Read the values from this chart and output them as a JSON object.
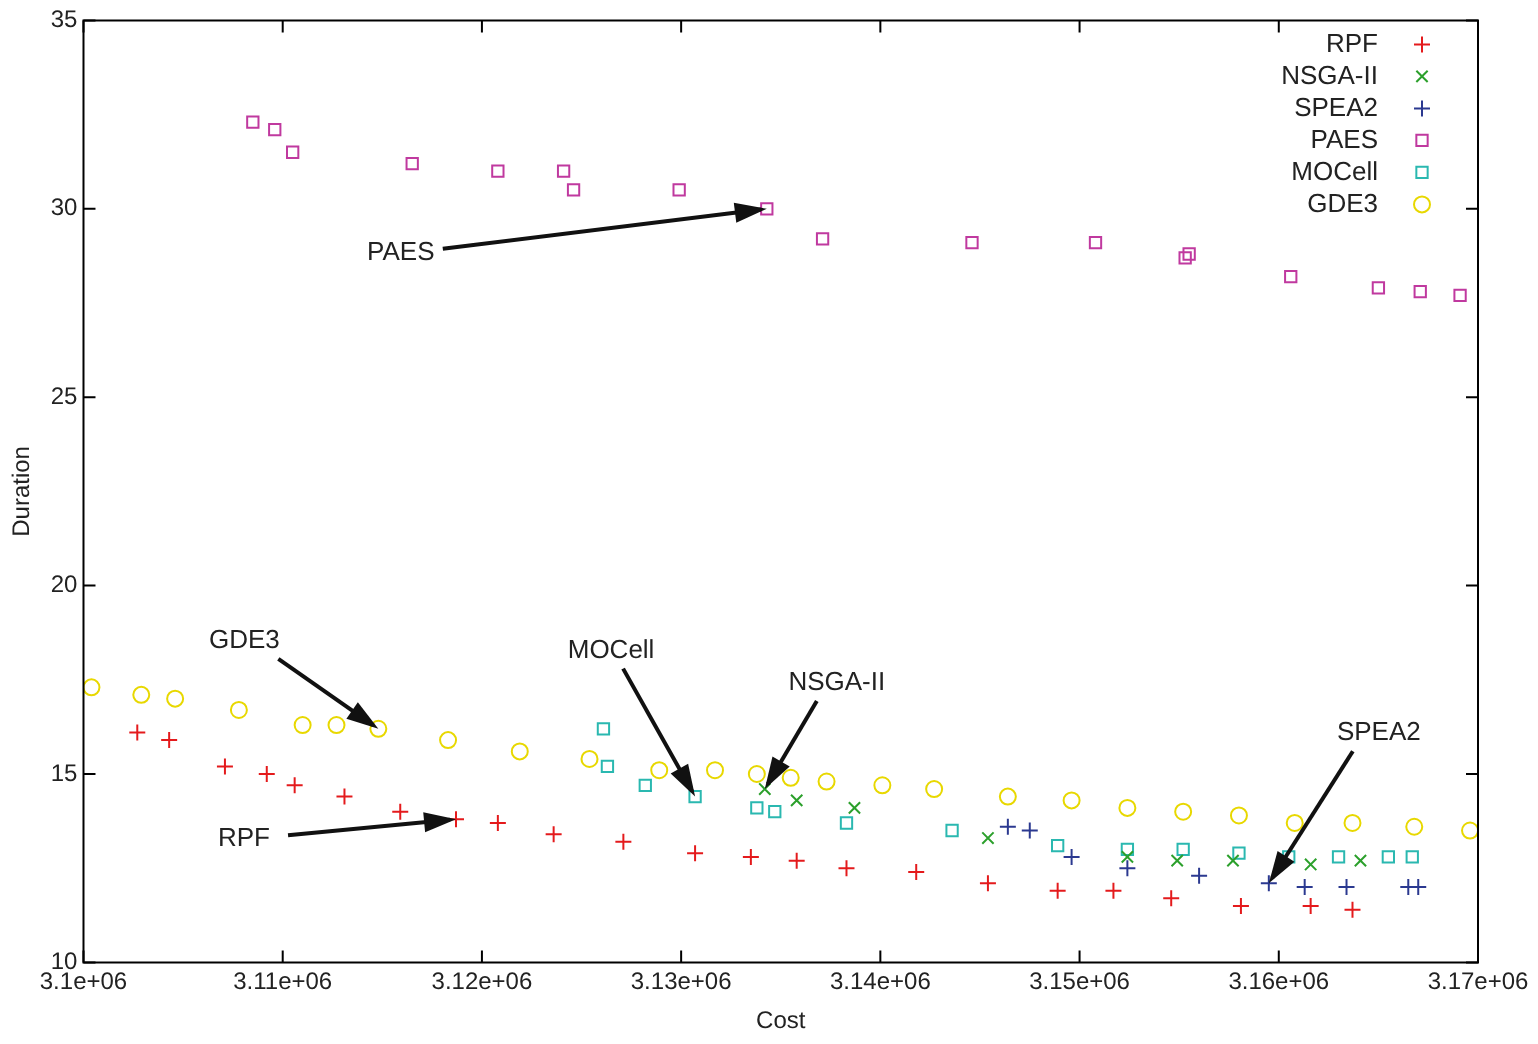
{
  "chart_data": {
    "type": "scatter",
    "xlabel": "Cost",
    "ylabel": "Duration",
    "legend": "top right",
    "grid": false,
    "xlim": [
      3100000,
      3170000
    ],
    "xticks": [
      {
        "value": 3100000,
        "label": "3.1e+06"
      },
      {
        "value": 3110000,
        "label": "3.11e+06"
      },
      {
        "value": 3120000,
        "label": "3.12e+06"
      },
      {
        "value": 3130000,
        "label": "3.13e+06"
      },
      {
        "value": 3140000,
        "label": "3.14e+06"
      },
      {
        "value": 3150000,
        "label": "3.15e+06"
      },
      {
        "value": 3160000,
        "label": "3.16e+06"
      },
      {
        "value": 3170000,
        "label": "3.17e+06"
      }
    ],
    "ylim": [
      10,
      35
    ],
    "yticks": [
      10,
      15,
      20,
      25,
      30,
      35
    ],
    "series": [
      {
        "name": "RPF",
        "color": "#e41a1c",
        "marker": "cross",
        "x": [
          3102700,
          3104300,
          3107100,
          3109200,
          3110600,
          3113100,
          3115900,
          3118700,
          3120800,
          3123600,
          3127100,
          3130700,
          3133500,
          3135800,
          3138300,
          3141800,
          3145400,
          3148900,
          3151700,
          3154600,
          3158100,
          3161600,
          3163700
        ],
        "values": [
          16.1,
          15.9,
          15.2,
          15.0,
          14.7,
          14.4,
          14.0,
          13.8,
          13.7,
          13.4,
          13.2,
          12.9,
          12.8,
          12.7,
          12.5,
          12.4,
          12.1,
          11.9,
          11.9,
          11.7,
          11.5,
          11.5,
          11.4
        ]
      },
      {
        "name": "NSGA-II",
        "color": "#2ca02c",
        "marker": "x",
        "x": [
          3134200,
          3135800,
          3138700,
          3145400,
          3152400,
          3154900,
          3157700,
          3161600,
          3164100
        ],
        "values": [
          14.6,
          14.3,
          14.1,
          13.3,
          12.8,
          12.7,
          12.7,
          12.6,
          12.7
        ]
      },
      {
        "name": "SPEA2",
        "color": "#2b3990",
        "marker": "cross",
        "x": [
          3146400,
          3147500,
          3149600,
          3152400,
          3156000,
          3159500,
          3161300,
          3163400,
          3166500,
          3167000
        ],
        "values": [
          13.6,
          13.5,
          12.8,
          12.5,
          12.3,
          12.1,
          12.0,
          12.0,
          12.0,
          12.0
        ]
      },
      {
        "name": "PAES",
        "color": "#c0399f",
        "marker": "square",
        "x": [
          3108500,
          3109600,
          3110500,
          3116500,
          3120800,
          3124100,
          3124600,
          3129900,
          3134300,
          3137100,
          3144600,
          3150800,
          3155300,
          3155500,
          3160600,
          3165000,
          3167100,
          3169100
        ],
        "values": [
          32.3,
          32.1,
          31.5,
          31.2,
          31.0,
          31.0,
          30.5,
          30.5,
          30.0,
          29.2,
          29.1,
          29.1,
          28.7,
          28.8,
          28.2,
          27.9,
          27.8,
          27.7
        ]
      },
      {
        "name": "MOCell",
        "color": "#2ab8b0",
        "marker": "square",
        "x": [
          3126100,
          3126300,
          3128200,
          3130700,
          3133800,
          3134700,
          3138300,
          3143600,
          3148900,
          3152400,
          3155200,
          3158000,
          3160500,
          3163000,
          3165500,
          3166700
        ],
        "values": [
          16.2,
          15.2,
          14.7,
          14.4,
          14.1,
          14.0,
          13.7,
          13.5,
          13.1,
          13.0,
          13.0,
          12.9,
          12.8,
          12.8,
          12.8,
          12.8
        ]
      },
      {
        "name": "GDE3",
        "color": "#e8d800",
        "marker": "circle",
        "x": [
          3100400,
          3102900,
          3104600,
          3107800,
          3111000,
          3112700,
          3114800,
          3118300,
          3121900,
          3125400,
          3128900,
          3131700,
          3133800,
          3135500,
          3137300,
          3140100,
          3142700,
          3146400,
          3149600,
          3152400,
          3155200,
          3158000,
          3160800,
          3163700,
          3166800,
          3169600
        ],
        "values": [
          17.3,
          17.1,
          17.0,
          16.7,
          16.3,
          16.3,
          16.2,
          15.9,
          15.6,
          15.4,
          15.1,
          15.1,
          15.0,
          14.9,
          14.8,
          14.7,
          14.6,
          14.4,
          14.3,
          14.1,
          14.0,
          13.9,
          13.7,
          13.7,
          13.6,
          13.5
        ]
      }
    ],
    "annotations": [
      {
        "text": "PAES",
        "x": 3134300,
        "y": 30.0
      },
      {
        "text": "GDE3",
        "x": 3114800,
        "y": 16.2
      },
      {
        "text": "MOCell",
        "x": 3130700,
        "y": 14.4
      },
      {
        "text": "NSGA-II",
        "x": 3134200,
        "y": 14.6
      },
      {
        "text": "SPEA2",
        "x": 3159500,
        "y": 12.1
      },
      {
        "text": "RPF",
        "x": 3118700,
        "y": 13.8
      }
    ]
  }
}
